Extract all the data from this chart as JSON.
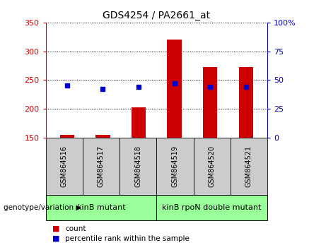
{
  "title": "GDS4254 / PA2661_at",
  "samples": [
    "GSM864516",
    "GSM864517",
    "GSM864518",
    "GSM864519",
    "GSM864520",
    "GSM864521"
  ],
  "counts": [
    155,
    155,
    202,
    320,
    272,
    272
  ],
  "percentile_ranks": [
    45,
    42,
    44,
    47,
    44,
    44
  ],
  "count_baseline": 150,
  "ylim_left": [
    150,
    350
  ],
  "ylim_right": [
    0,
    100
  ],
  "left_yticks": [
    150,
    200,
    250,
    300,
    350
  ],
  "right_yticks": [
    0,
    25,
    50,
    75,
    100
  ],
  "right_yticklabels": [
    "0",
    "25",
    "50",
    "75",
    "100%"
  ],
  "left_color": "#cc0000",
  "right_color": "#0000cc",
  "bar_color": "#cc0000",
  "dot_color": "#0000cc",
  "group1_label": "kinB mutant",
  "group2_label": "kinB rpoN double mutant",
  "group_color": "#99ff99",
  "sample_box_color": "#cccccc",
  "genotype_label": "genotype/variation",
  "legend_count": "count",
  "legend_pct": "percentile rank within the sample",
  "background_color": "#ffffff"
}
